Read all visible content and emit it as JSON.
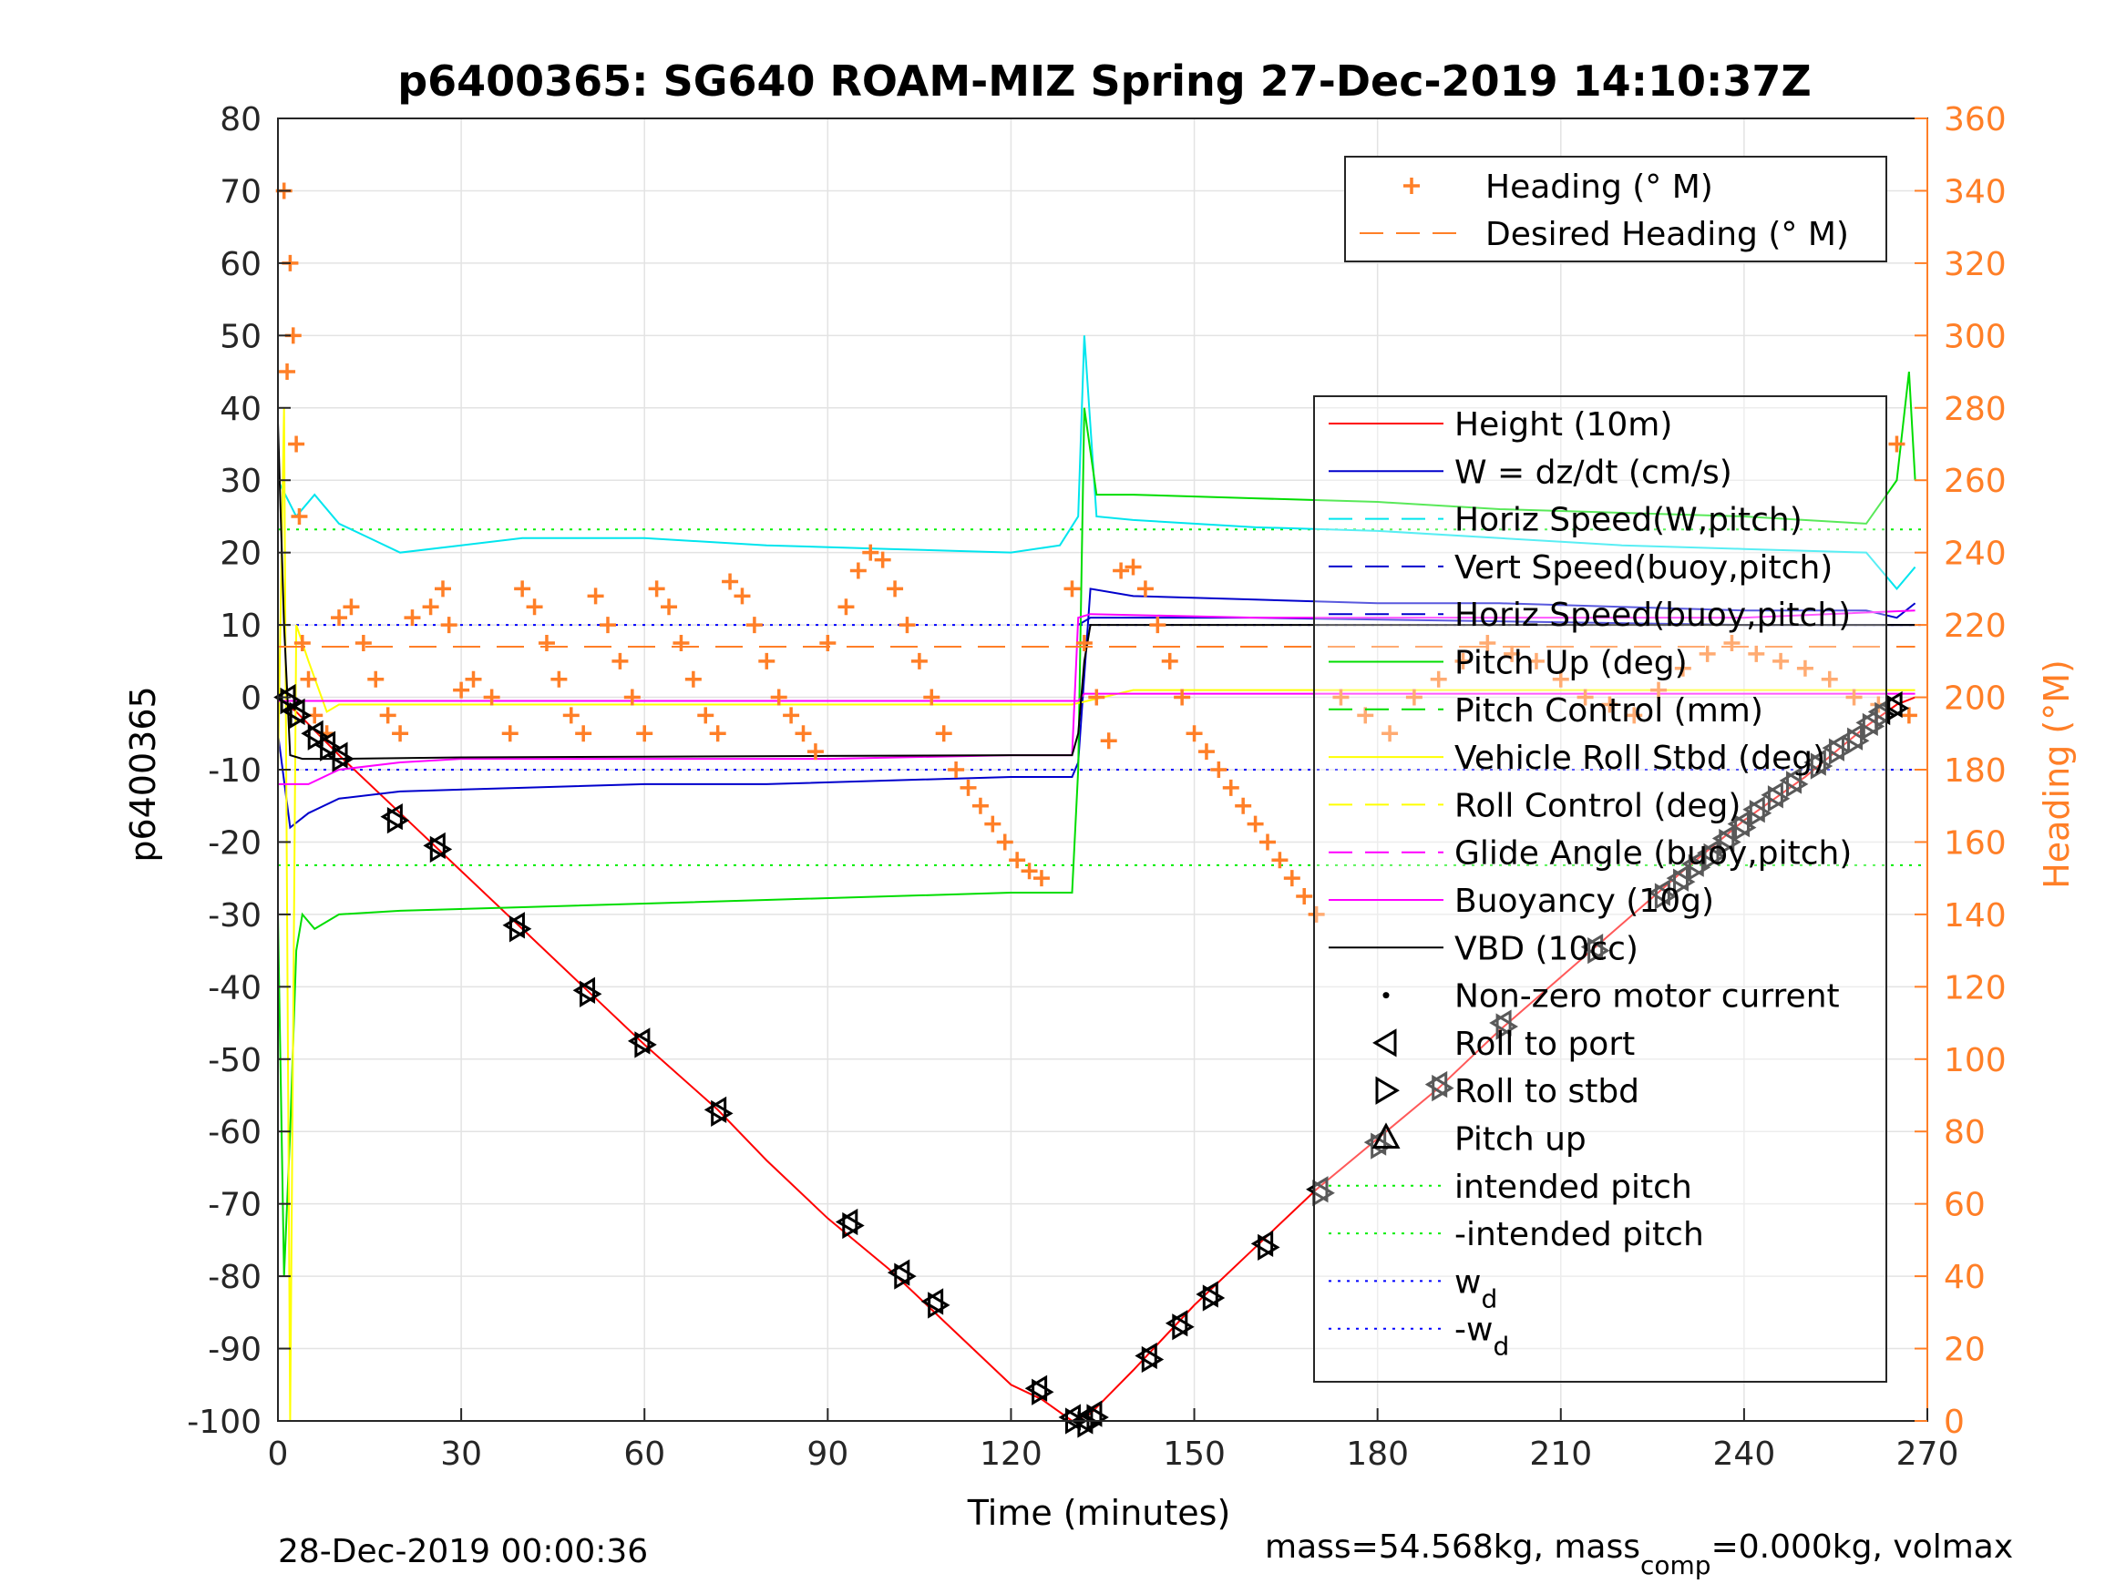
{
  "chart_data": {
    "type": "line",
    "title": "p6400365: SG640 ROAM-MIZ Spring 27-Dec-2019 14:10:37Z",
    "xlabel": "Time (minutes)",
    "ylabel": "p6400365",
    "y2label": "Heading (°M)",
    "xlim": [
      0,
      270
    ],
    "ylim": [
      -100,
      80
    ],
    "y2lim": [
      0,
      360
    ],
    "xticks": [
      0,
      30,
      60,
      90,
      120,
      150,
      180,
      210,
      240,
      270
    ],
    "yticks": [
      80,
      70,
      60,
      50,
      40,
      30,
      20,
      10,
      0,
      -10,
      -20,
      -30,
      -40,
      -50,
      -60,
      -70,
      -80,
      -90,
      -100
    ],
    "y2ticks": [
      360,
      340,
      320,
      300,
      280,
      260,
      240,
      220,
      200,
      180,
      160,
      140,
      120,
      100,
      80,
      60,
      40,
      20,
      0
    ],
    "grid": true,
    "footer_left": "28-Dec-2019 00:00:36",
    "footer_right": {
      "pre": "mass=54.568kg, mass",
      "sub": "comp",
      "post": "=0.000kg, volmax"
    },
    "legend_top": {
      "placement": "top-right",
      "entries": [
        {
          "label": "Heading (° M)",
          "color": "#ff7f27",
          "style": "plus"
        },
        {
          "label": "Desired Heading (° M)",
          "color": "#ff7f27",
          "style": "dashed"
        }
      ]
    },
    "legend_main": {
      "placement": "right",
      "entries": [
        {
          "label": "Height (10m)",
          "color": "#ff0000",
          "style": "solid"
        },
        {
          "label": "W = dz/dt (cm/s)",
          "color": "#0000cc",
          "style": "solid"
        },
        {
          "label": "Horiz Speed(W,pitch)",
          "color": "#00e5ee",
          "style": "dashed"
        },
        {
          "label": "Vert Speed(buoy,pitch)",
          "color": "#0000cc",
          "style": "dashed"
        },
        {
          "label": "Horiz Speed(buoy,pitch)",
          "color": "#0000cc",
          "style": "dashed"
        },
        {
          "label": "Pitch Up (deg)",
          "color": "#00dd00",
          "style": "solid"
        },
        {
          "label": "Pitch Control (mm)",
          "color": "#00dd00",
          "style": "dashed"
        },
        {
          "label": "Vehicle Roll Stbd (deg)",
          "color": "#ffff00",
          "style": "solid"
        },
        {
          "label": "Roll Control (deg)",
          "color": "#ffff00",
          "style": "dashed"
        },
        {
          "label": "Glide Angle (buoy,pitch)",
          "color": "#ff00ff",
          "style": "dashed"
        },
        {
          "label": "Buoyancy (10g)",
          "color": "#ff00ff",
          "style": "solid"
        },
        {
          "label": "VBD (10cc)",
          "color": "#000000",
          "style": "solid"
        },
        {
          "label": "Non-zero motor current",
          "color": "#000000",
          "style": "dot"
        },
        {
          "label": "Roll to port",
          "color": "#000000",
          "style": "tri-left"
        },
        {
          "label": "Roll to stbd",
          "color": "#000000",
          "style": "tri-right"
        },
        {
          "label": "Pitch up",
          "color": "#000000",
          "style": "tri-up"
        },
        {
          "label": "intended pitch",
          "color": "#00ee00",
          "style": "dotted"
        },
        {
          "label": "-intended pitch",
          "color": "#00ee00",
          "style": "dotted"
        },
        {
          "label": "w",
          "sub": "d",
          "color": "#0000ff",
          "style": "dotted"
        },
        {
          "label": "-w",
          "sub": "d",
          "color": "#0000ff",
          "style": "dotted"
        }
      ]
    },
    "series": [
      {
        "name": "Height (10m)",
        "color": "#ff0000",
        "x": [
          0,
          3,
          10,
          20,
          30,
          40,
          50,
          60,
          72,
          80,
          90,
          100,
          110,
          120,
          125,
          130,
          133,
          140,
          150,
          160,
          170,
          180,
          190,
          200,
          215,
          230,
          240,
          250,
          260,
          265,
          268
        ],
        "y": [
          0,
          -2,
          -8,
          -16,
          -24,
          -32,
          -40,
          -48,
          -57,
          -64,
          -72,
          -79,
          -87,
          -95,
          -97,
          -100,
          -99,
          -93,
          -84,
          -76,
          -68,
          -61,
          -54,
          -46,
          -35,
          -24,
          -17,
          -11,
          -4,
          -1,
          0
        ]
      },
      {
        "name": "W = dz/dt (cm/s)",
        "color": "#0000cc",
        "x": [
          0,
          2,
          5,
          10,
          20,
          40,
          60,
          80,
          100,
          120,
          130,
          131,
          133,
          140,
          160,
          180,
          200,
          220,
          240,
          260,
          265,
          268
        ],
        "y": [
          -5,
          -18,
          -16,
          -14,
          -13,
          -12.5,
          -12,
          -12,
          -11.5,
          -11,
          -11,
          -9,
          15,
          14,
          13.5,
          13,
          13,
          12.5,
          12,
          12,
          11,
          13
        ]
      },
      {
        "name": "Horiz Speed(W,pitch)",
        "color": "#00e5ee",
        "x": [
          0,
          3,
          6,
          10,
          15,
          20,
          30,
          40,
          60,
          80,
          100,
          120,
          128,
          131,
          132,
          134,
          140,
          160,
          180,
          200,
          220,
          240,
          260,
          265,
          268
        ],
        "y": [
          30,
          25,
          28,
          24,
          22,
          20,
          21,
          22,
          22,
          21,
          20.5,
          20,
          21,
          25,
          50,
          25,
          24.5,
          23.5,
          23,
          22,
          21,
          20.5,
          20,
          15,
          18
        ]
      },
      {
        "name": "Vert Speed(buoy,pitch)",
        "color": "#0000cc",
        "x": [
          131,
          133,
          160,
          200,
          240,
          268
        ],
        "y": [
          10,
          11,
          11,
          10.5,
          10,
          10
        ]
      },
      {
        "name": "Pitch Up (deg)",
        "color": "#00dd00",
        "x": [
          0,
          1,
          2,
          3,
          4,
          6,
          10,
          20,
          40,
          60,
          80,
          100,
          120,
          130,
          131,
          132,
          134,
          140,
          160,
          180,
          200,
          220,
          240,
          260,
          265,
          267,
          268
        ],
        "y": [
          -30,
          -80,
          -60,
          -35,
          -30,
          -32,
          -30,
          -29.5,
          -29,
          -28.5,
          -28,
          -27.5,
          -27,
          -27,
          -10,
          40,
          28,
          28,
          27.5,
          27,
          26,
          25.5,
          25,
          24,
          30,
          45,
          30
        ]
      },
      {
        "name": "Vehicle Roll Stbd (deg)",
        "color": "#ffff00",
        "x": [
          0,
          1,
          2,
          3,
          5,
          8,
          10,
          20,
          30,
          40,
          60,
          80,
          100,
          120,
          130,
          140,
          160,
          180,
          200,
          220,
          240,
          260,
          268
        ],
        "y": [
          -10,
          40,
          -100,
          10,
          5,
          -2,
          -1,
          -1,
          -1,
          -1,
          -1,
          -1,
          -1,
          -1,
          -1,
          1,
          1,
          1,
          1,
          1,
          1,
          1,
          1
        ]
      },
      {
        "name": "Buoyancy (10g)",
        "color": "#ff00ff",
        "x": [
          0,
          5,
          10,
          20,
          30,
          60,
          90,
          120,
          130,
          131,
          133,
          160,
          200,
          240,
          268
        ],
        "y": [
          -12,
          -12,
          -10,
          -9,
          -8.5,
          -8.5,
          -8.5,
          -8,
          -8,
          11,
          11.5,
          11,
          11,
          11,
          12
        ]
      },
      {
        "name": "Glide Angle (buoy,pitch)",
        "color": "#ff00ff",
        "x": [
          0,
          131,
          132,
          268
        ],
        "y": [
          -0.5,
          -0.5,
          0.5,
          0.5
        ]
      },
      {
        "name": "VBD (10cc)",
        "color": "#000000",
        "x": [
          0,
          1,
          2,
          4,
          10,
          30,
          60,
          90,
          120,
          130,
          131,
          132,
          133,
          160,
          200,
          240,
          268
        ],
        "y": [
          38,
          10,
          -8,
          -8.5,
          -8.5,
          -8.3,
          -8.2,
          -8.1,
          -8,
          -8,
          -5,
          5,
          10,
          10,
          10,
          10,
          10
        ]
      }
    ],
    "reference_lines": [
      {
        "name": "intended pitch",
        "y": 23.2,
        "color": "#00ee00"
      },
      {
        "name": "-intended pitch",
        "y": -23.2,
        "color": "#00ee00"
      },
      {
        "name": "w_d",
        "y": 10,
        "color": "#0000ff"
      },
      {
        "name": "-w_d",
        "y": -10,
        "color": "#0000ff"
      }
    ],
    "heading_series": {
      "name": "Heading (° M)",
      "color": "#ff7f27",
      "axis": "right",
      "x": [
        1,
        1.5,
        2,
        2.5,
        3,
        3.5,
        4,
        5,
        6,
        8,
        10,
        12,
        14,
        16,
        18,
        20,
        22,
        25,
        27,
        28,
        30,
        32,
        35,
        38,
        40,
        42,
        44,
        46,
        48,
        50,
        52,
        54,
        56,
        58,
        60,
        62,
        64,
        66,
        68,
        70,
        72,
        74,
        76,
        78,
        80,
        82,
        84,
        86,
        88,
        90,
        93,
        95,
        97,
        99,
        101,
        103,
        105,
        107,
        109,
        111,
        113,
        115,
        117,
        119,
        121,
        123,
        125,
        130,
        132,
        134,
        136,
        138,
        140,
        142,
        144,
        146,
        148,
        150,
        152,
        154,
        156,
        158,
        160,
        162,
        164,
        166,
        168,
        170,
        174,
        178,
        182,
        186,
        190,
        194,
        198,
        202,
        206,
        210,
        214,
        218,
        222,
        226,
        230,
        234,
        238,
        242,
        246,
        250,
        254,
        258,
        262,
        265,
        267
      ],
      "y": [
        340,
        290,
        320,
        300,
        270,
        250,
        215,
        205,
        195,
        190,
        222,
        225,
        215,
        205,
        195,
        190,
        222,
        225,
        230,
        220,
        202,
        205,
        200,
        190,
        230,
        225,
        215,
        205,
        195,
        190,
        228,
        220,
        210,
        200,
        190,
        230,
        225,
        215,
        205,
        195,
        190,
        232,
        228,
        220,
        210,
        200,
        195,
        190,
        185,
        215,
        225,
        235,
        240,
        238,
        230,
        220,
        210,
        200,
        190,
        180,
        175,
        170,
        165,
        160,
        155,
        152,
        150,
        230,
        215,
        200,
        188,
        235,
        236,
        230,
        220,
        210,
        200,
        190,
        185,
        180,
        175,
        170,
        165,
        160,
        155,
        150,
        145,
        140,
        200,
        195,
        190,
        200,
        205,
        210,
        215,
        212,
        210,
        205,
        200,
        198,
        195,
        202,
        208,
        212,
        215,
        212,
        210,
        208,
        205,
        200,
        198,
        270,
        195
      ]
    },
    "desired_heading": {
      "name": "Desired Heading (° M)",
      "color": "#ff7f27",
      "axis": "right",
      "x": [
        0,
        268
      ],
      "y": [
        214,
        214
      ]
    },
    "roll_markers": {
      "x": [
        1.5,
        3,
        6,
        8,
        10,
        19,
        26,
        39,
        50.5,
        59.5,
        72,
        93.5,
        102,
        107.5,
        124.5,
        130,
        132,
        133.5,
        142.5,
        147.5,
        152.5,
        161.5,
        170.5,
        180,
        190,
        200.5,
        215.5,
        226.5,
        229.5,
        232,
        234.5,
        237,
        239.5,
        242,
        245,
        248,
        252,
        255,
        258,
        260.5,
        262.5,
        264.5
      ],
      "y": [
        0,
        -2,
        -5,
        -6.5,
        -8,
        -16.5,
        -20.5,
        -31.5,
        -40.5,
        -47.5,
        -57,
        -72.5,
        -79.5,
        -83.5,
        -95.5,
        -99.5,
        -100,
        -99,
        -91,
        -86.5,
        -82.5,
        -75.5,
        -68,
        -61.5,
        -53.5,
        -45,
        -34.5,
        -27,
        -25,
        -23,
        -21.5,
        -19.5,
        -17.5,
        -15.5,
        -13.5,
        -11.5,
        -9,
        -7,
        -5.5,
        -3.5,
        -2,
        -1
      ]
    }
  }
}
